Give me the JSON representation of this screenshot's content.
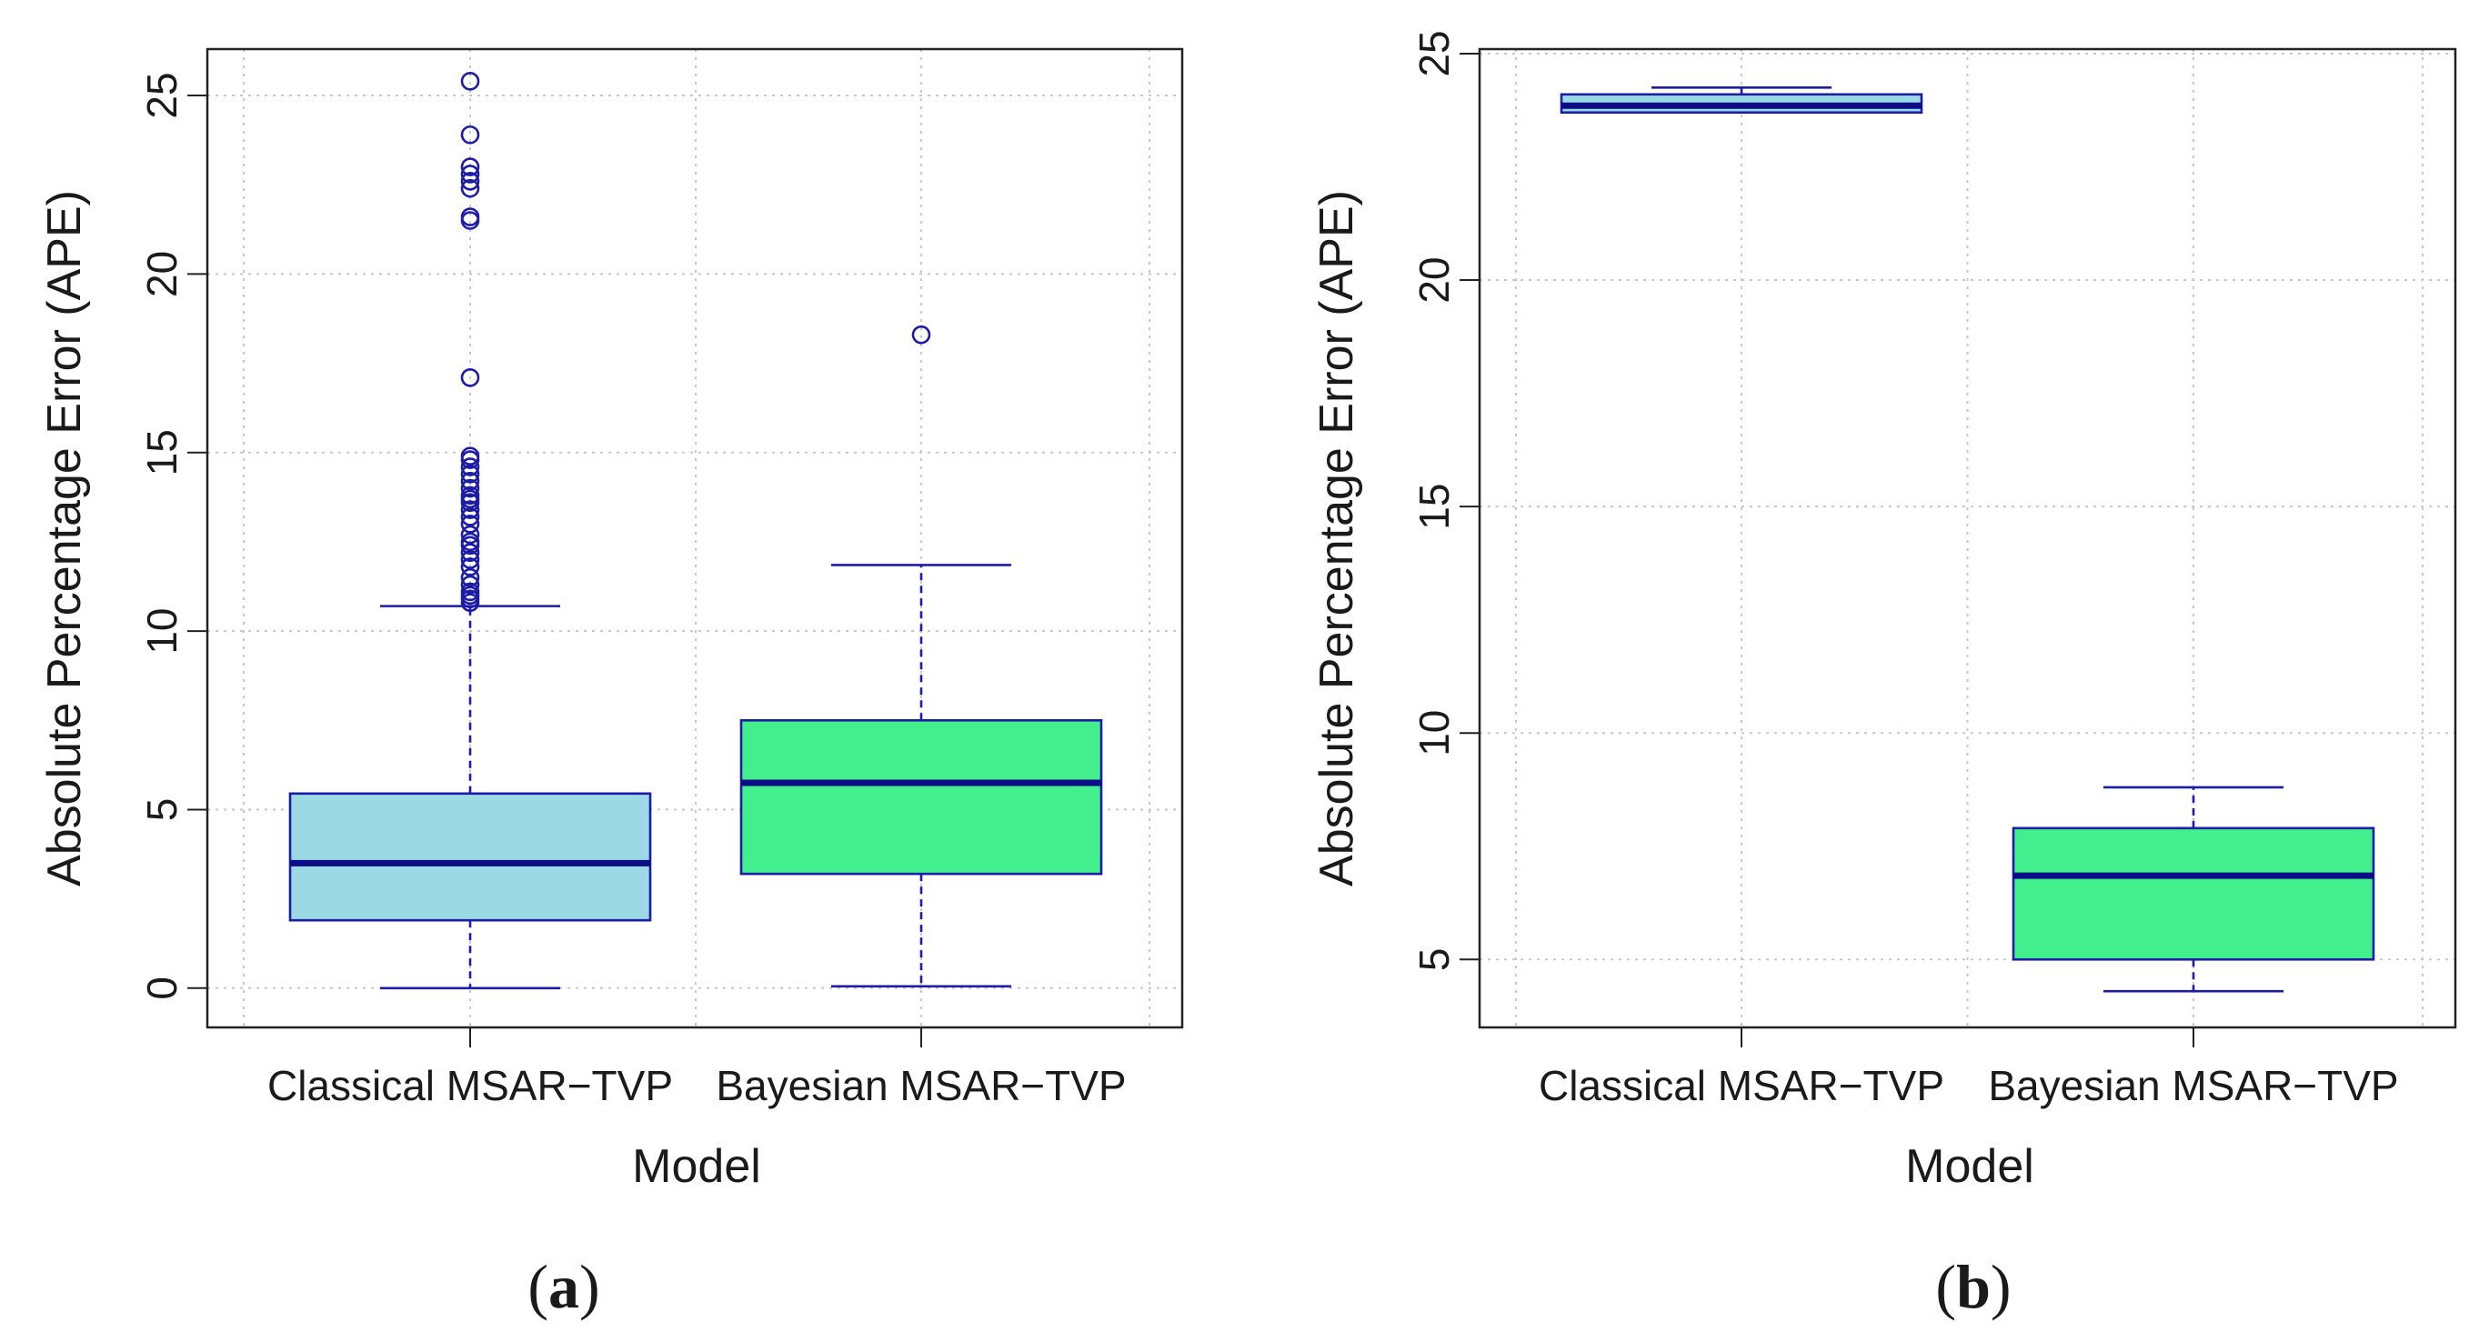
{
  "colors": {
    "classical_fill": "#9bd9e4",
    "bayesian_fill": "#42ef8c",
    "box_stroke": "#1c1ca6",
    "median_stroke": "#0c0c86",
    "frame": "#222222"
  },
  "chart_data": [
    {
      "type": "box",
      "panel_label_letter": "a",
      "xlabel": "Model",
      "ylabel": "Absolute Percentage Error (APE)",
      "ylim": [
        -1.1,
        26.3
      ],
      "yticks": [
        0,
        5,
        10,
        15,
        20,
        25
      ],
      "ytick_labels": [
        "0",
        "5",
        "10",
        "15",
        "20",
        "25"
      ],
      "categories": [
        "Classical MSAR−TVP",
        "Bayesian MSAR−TVP"
      ],
      "series": [
        {
          "name": "Classical MSAR−TVP",
          "whisker_low": 0.0,
          "q1": 1.9,
          "median": 3.5,
          "q3": 5.45,
          "whisker_high": 10.7,
          "outliers": [
            10.8,
            10.9,
            11.0,
            11.1,
            11.3,
            11.5,
            11.8,
            12.0,
            12.2,
            12.4,
            12.5,
            12.7,
            13.0,
            13.2,
            13.4,
            13.6,
            13.7,
            13.8,
            14.0,
            14.2,
            14.4,
            14.6,
            14.8,
            14.9,
            17.1,
            21.5,
            21.6,
            22.4,
            22.6,
            22.8,
            23.0,
            23.9,
            25.4
          ]
        },
        {
          "name": "Bayesian MSAR−TVP",
          "whisker_low": 0.05,
          "q1": 3.2,
          "median": 5.75,
          "q3": 7.5,
          "whisker_high": 11.85,
          "outliers": [
            18.3
          ]
        }
      ]
    },
    {
      "type": "box",
      "panel_label_letter": "b",
      "xlabel": "Model",
      "ylabel": "Absolute Percentage Error (APE)",
      "ylim": [
        3.5,
        25.1
      ],
      "yticks": [
        5,
        10,
        15,
        20,
        25
      ],
      "ytick_labels": [
        "5",
        "10",
        "15",
        "20",
        "25"
      ],
      "categories": [
        "Classical MSAR−TVP",
        "Bayesian MSAR−TVP"
      ],
      "series": [
        {
          "name": "Classical MSAR−TVP",
          "whisker_low": 23.7,
          "q1": 23.7,
          "median": 23.85,
          "q3": 24.1,
          "whisker_high": 24.25,
          "outliers": []
        },
        {
          "name": "Bayesian MSAR−TVP",
          "whisker_low": 4.3,
          "q1": 5.0,
          "median": 6.85,
          "q3": 7.9,
          "whisker_high": 8.8,
          "outliers": []
        }
      ]
    }
  ]
}
